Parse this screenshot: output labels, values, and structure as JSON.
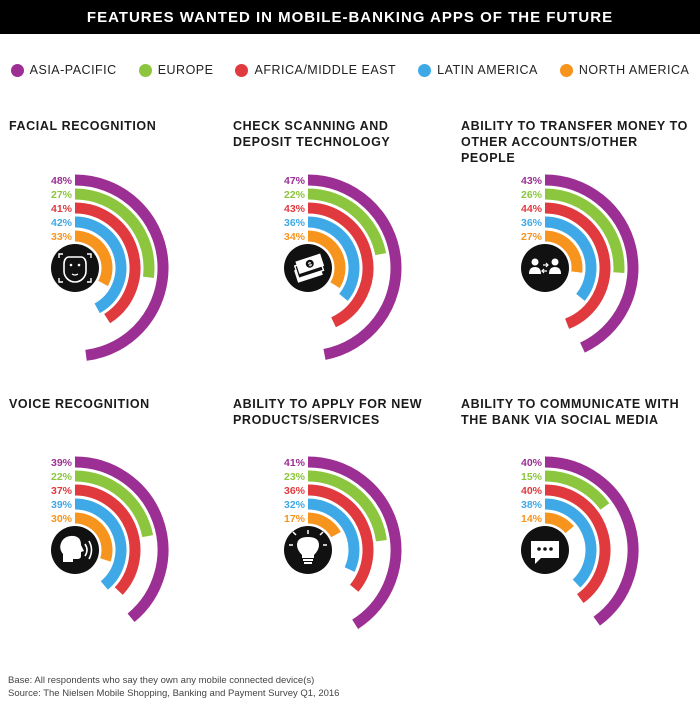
{
  "header": {
    "title": "FEATURES WANTED IN MOBILE-BANKING APPS OF THE FUTURE"
  },
  "legend": [
    {
      "label": "ASIA-PACIFIC",
      "color": "#9b2f93"
    },
    {
      "label": "EUROPE",
      "color": "#8cc63f"
    },
    {
      "label": "AFRICA/MIDDLE EAST",
      "color": "#e03a3e"
    },
    {
      "label": "LATIN AMERICA",
      "color": "#3fa9e8"
    },
    {
      "label": "NORTH AMERICA",
      "color": "#f7941d"
    }
  ],
  "chart_data": [
    {
      "type": "radial-bar",
      "title_lines": [
        "FACIAL RECOGNITION"
      ],
      "icon": "face-scan-icon",
      "categories": [
        "ASIA-PACIFIC",
        "EUROPE",
        "AFRICA/MIDDLE EAST",
        "LATIN AMERICA",
        "NORTH AMERICA"
      ],
      "values": [
        48,
        27,
        41,
        42,
        33
      ],
      "labels": [
        "48%",
        "27%",
        "41%",
        "42%",
        "33%"
      ]
    },
    {
      "type": "radial-bar",
      "title_lines": [
        "CHECK SCANNING AND",
        "DEPOSIT TECHNOLOGY"
      ],
      "icon": "cash-check-icon",
      "categories": [
        "ASIA-PACIFIC",
        "EUROPE",
        "AFRICA/MIDDLE EAST",
        "LATIN AMERICA",
        "NORTH AMERICA"
      ],
      "values": [
        47,
        22,
        43,
        36,
        34
      ],
      "labels": [
        "47%",
        "22%",
        "43%",
        "36%",
        "34%"
      ]
    },
    {
      "type": "radial-bar",
      "title_lines": [
        "ABILITY TO TRANSFER MONEY TO",
        "OTHER ACCOUNTS/OTHER PEOPLE"
      ],
      "icon": "money-transfer-icon",
      "categories": [
        "ASIA-PACIFIC",
        "EUROPE",
        "AFRICA/MIDDLE EAST",
        "LATIN AMERICA",
        "NORTH AMERICA"
      ],
      "values": [
        43,
        26,
        44,
        36,
        27
      ],
      "labels": [
        "43%",
        "26%",
        "44%",
        "36%",
        "27%"
      ]
    },
    {
      "type": "radial-bar",
      "title_lines": [
        "VOICE RECOGNITION"
      ],
      "icon": "voice-icon",
      "categories": [
        "ASIA-PACIFIC",
        "EUROPE",
        "AFRICA/MIDDLE EAST",
        "LATIN AMERICA",
        "NORTH AMERICA"
      ],
      "values": [
        39,
        22,
        37,
        39,
        30
      ],
      "labels": [
        "39%",
        "22%",
        "37%",
        "39%",
        "30%"
      ]
    },
    {
      "type": "radial-bar",
      "title_lines": [
        "ABILITY TO APPLY FOR NEW",
        "PRODUCTS/SERVICES"
      ],
      "icon": "lightbulb-icon",
      "categories": [
        "ASIA-PACIFIC",
        "EUROPE",
        "AFRICA/MIDDLE EAST",
        "LATIN AMERICA",
        "NORTH AMERICA"
      ],
      "values": [
        41,
        23,
        36,
        32,
        17
      ],
      "labels": [
        "41%",
        "23%",
        "36%",
        "32%",
        "17%"
      ]
    },
    {
      "type": "radial-bar",
      "title_lines": [
        "ABILITY TO COMMUNICATE WITH",
        "THE BANK VIA SOCIAL MEDIA"
      ],
      "icon": "chat-bubble-icon",
      "categories": [
        "ASIA-PACIFIC",
        "EUROPE",
        "AFRICA/MIDDLE EAST",
        "LATIN AMERICA",
        "NORTH AMERICA"
      ],
      "values": [
        40,
        15,
        40,
        38,
        14
      ],
      "labels": [
        "40%",
        "15%",
        "40%",
        "38%",
        "14%"
      ]
    }
  ],
  "footer": {
    "base": "Base: All respondents who say they own any mobile connected device(s)",
    "source": "Source: The Nielsen Mobile Shopping, Banking and Payment Survey Q1, 2016"
  }
}
